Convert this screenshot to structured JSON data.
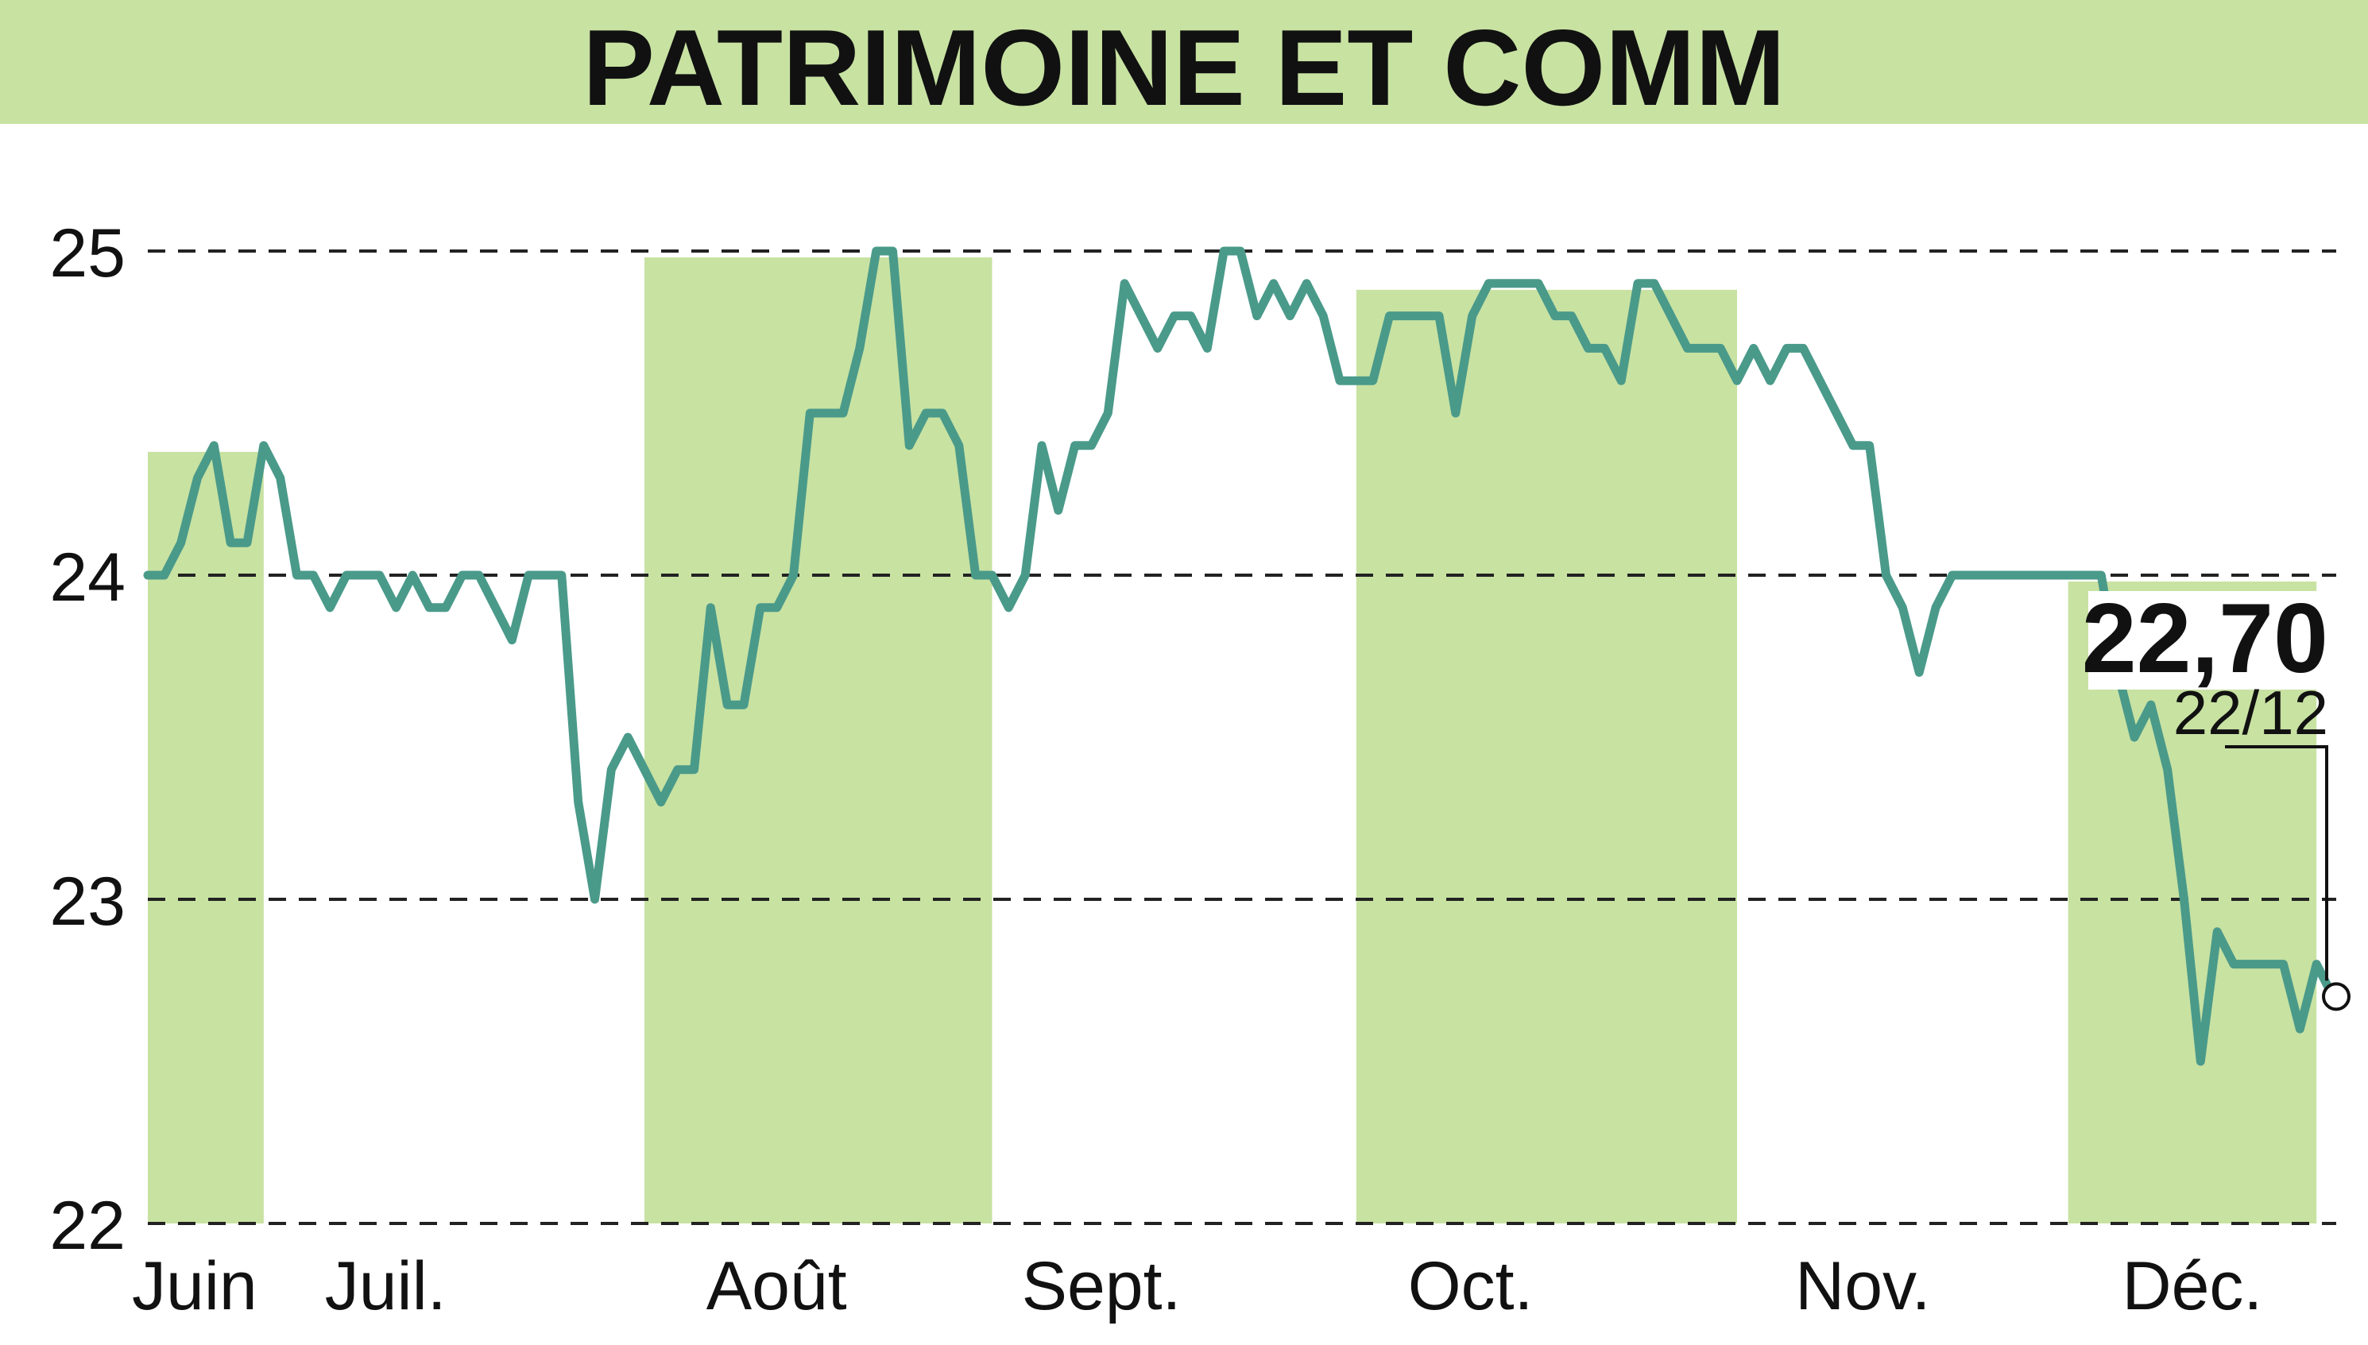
{
  "title": "PATRIMOINE ET COMM",
  "colors": {
    "title_band": "#c8e2a2",
    "month_band": "#c8e2a2",
    "line": "#4a9a8a",
    "grid": "#222222",
    "text": "#111111"
  },
  "chart_data": {
    "type": "line",
    "title": "PATRIMOINE ET COMM",
    "xlabel": "",
    "ylabel": "",
    "ylim": [
      22,
      25
    ],
    "yticks": [
      22,
      23,
      24,
      25
    ],
    "ytick_labels": [
      "22",
      "23",
      "24",
      "25"
    ],
    "grid": "horizontal dashed",
    "months": [
      {
        "label": "Juin",
        "start": 0,
        "end": 7,
        "shaded": true
      },
      {
        "label": "Juil.",
        "start": 7,
        "end": 30,
        "shaded": false
      },
      {
        "label": "Août",
        "start": 30,
        "end": 51,
        "shaded": true
      },
      {
        "label": "Sept.",
        "start": 51,
        "end": 73,
        "shaded": false
      },
      {
        "label": "Oct.",
        "start": 73,
        "end": 96,
        "shaded": true
      },
      {
        "label": "Nov.",
        "start": 96,
        "end": 116,
        "shaded": false
      },
      {
        "label": "Déc.",
        "start": 116,
        "end": 131,
        "shaded": true
      }
    ],
    "series": [
      {
        "values": [
          24.0,
          24.0,
          24.1,
          24.3,
          24.4,
          24.1,
          24.1,
          24.4,
          24.3,
          24.0,
          24.0,
          23.9,
          24.0,
          24.0,
          24.0,
          23.9,
          24.0,
          23.9,
          23.9,
          24.0,
          24.0,
          23.9,
          23.8,
          24.0,
          24.0,
          24.0,
          23.3,
          23.0,
          23.4,
          23.5,
          23.4,
          23.3,
          23.4,
          23.4,
          23.9,
          23.6,
          23.6,
          23.9,
          23.9,
          24.0,
          24.5,
          24.5,
          24.5,
          24.7,
          25.0,
          25.0,
          24.4,
          24.5,
          24.5,
          24.4,
          24.0,
          24.0,
          23.9,
          24.0,
          24.4,
          24.2,
          24.4,
          24.4,
          24.5,
          24.9,
          24.8,
          24.7,
          24.8,
          24.8,
          24.7,
          25.0,
          25.0,
          24.8,
          24.9,
          24.8,
          24.9,
          24.8,
          24.6,
          24.6,
          24.6,
          24.8,
          24.8,
          24.8,
          24.8,
          24.5,
          24.8,
          24.9,
          24.9,
          24.9,
          24.9,
          24.8,
          24.8,
          24.7,
          24.7,
          24.6,
          24.9,
          24.9,
          24.8,
          24.7,
          24.7,
          24.7,
          24.6,
          24.7,
          24.6,
          24.7,
          24.7,
          24.6,
          24.5,
          24.4,
          24.4,
          24.0,
          23.9,
          23.7,
          23.9,
          24.0,
          24.0,
          24.0,
          24.0,
          24.0,
          24.0,
          24.0,
          24.0,
          24.0,
          24.0,
          23.7,
          23.5,
          23.6,
          23.4,
          23.0,
          22.5,
          22.9,
          22.8,
          22.8,
          22.8,
          22.8,
          22.6,
          22.8,
          22.7
        ]
      }
    ],
    "last_value": {
      "label": "22,70",
      "date": "22/12",
      "value": 22.7
    }
  }
}
